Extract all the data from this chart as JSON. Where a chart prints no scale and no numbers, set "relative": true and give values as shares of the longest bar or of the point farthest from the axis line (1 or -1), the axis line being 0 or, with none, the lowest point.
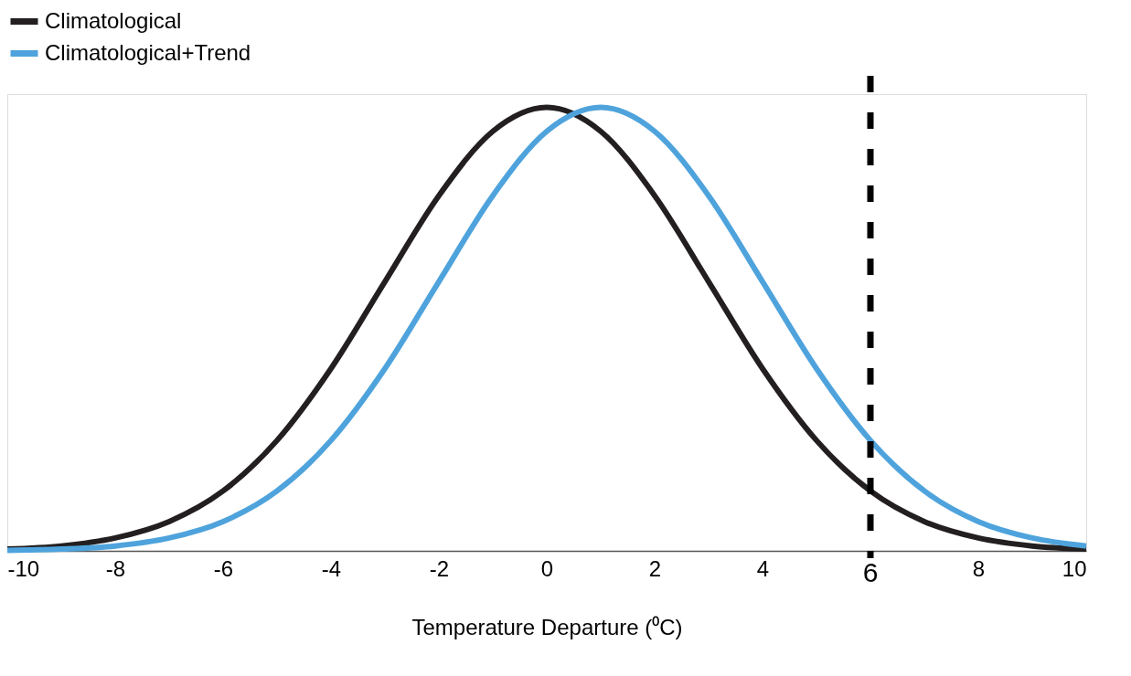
{
  "chart_data": {
    "type": "line",
    "relative": true,
    "xlabel": "Temperature Departure (⁰C)",
    "xlim": [
      -10,
      10
    ],
    "xticks": [
      -10,
      -8,
      -6,
      -4,
      -2,
      0,
      2,
      4,
      8,
      10
    ],
    "x": [
      -10,
      -9,
      -8,
      -7,
      -6,
      -5,
      -4,
      -3,
      -2,
      -1,
      0,
      1,
      2,
      3,
      4,
      5,
      6,
      7,
      8,
      9,
      10
    ],
    "series": [
      {
        "name": "Climatological",
        "color": "#231f20",
        "values": [
          0.004,
          0.011,
          0.029,
          0.066,
          0.135,
          0.249,
          0.411,
          0.607,
          0.801,
          0.946,
          1,
          0.946,
          0.801,
          0.607,
          0.411,
          0.249,
          0.135,
          0.066,
          0.029,
          0.011,
          0.004
        ]
      },
      {
        "name": "Climatological+Trend",
        "color": "#4fa3dc",
        "values": [
          0.001,
          0.004,
          0.011,
          0.029,
          0.066,
          0.135,
          0.249,
          0.411,
          0.607,
          0.801,
          0.946,
          1,
          0.946,
          0.801,
          0.607,
          0.411,
          0.249,
          0.135,
          0.066,
          0.029,
          0.011
        ]
      }
    ],
    "ref_lines": [
      {
        "axis": "x",
        "value": 6,
        "label": "6",
        "color": "#000000",
        "line_style": "dashed"
      }
    ],
    "legend": "top left",
    "grid": false,
    "marker": "none",
    "line_style": "solid"
  }
}
